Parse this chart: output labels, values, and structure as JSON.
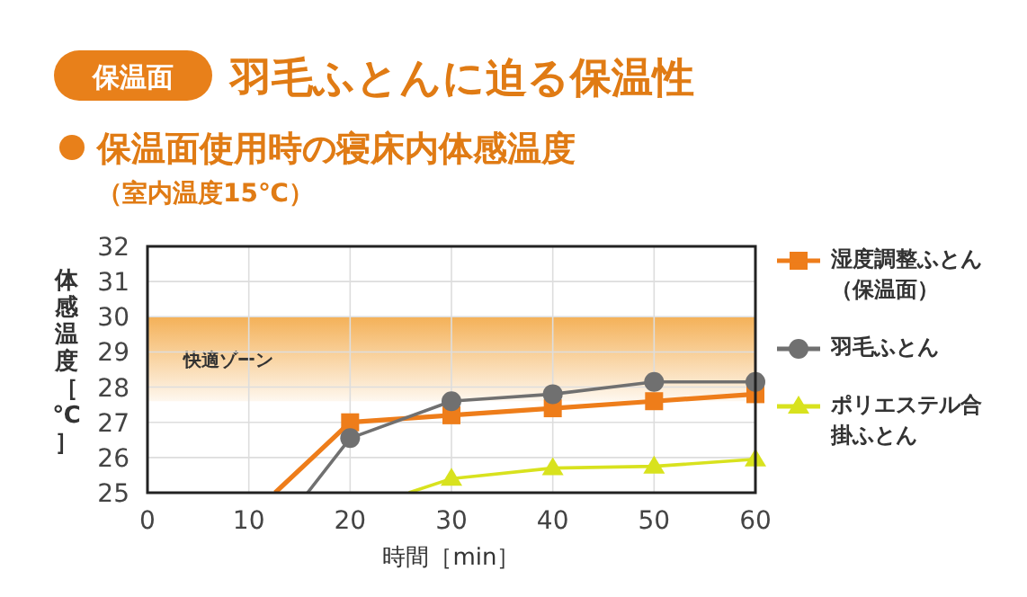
{
  "chart_data": {
    "type": "line",
    "title": "羽毛ふとんに迫る保温性",
    "subtitle": "保温面使用時の寝床内体感温度",
    "annotations": [
      "保温面",
      "（室内温度15℃）"
    ],
    "xlabel": "時間［min］",
    "ylabel": "体感温度［℃］",
    "xlim": [
      0,
      60
    ],
    "xticks": [
      0,
      10,
      20,
      30,
      40,
      50,
      60
    ],
    "ylim": [
      25,
      32
    ],
    "yticks": [
      25,
      26,
      27,
      28,
      29,
      30,
      31,
      32
    ],
    "grid": true,
    "legend": "right",
    "bands": [
      {
        "axis": "y",
        "from": 27.6,
        "to": 30,
        "label": "快適ゾーン",
        "color": "#f2a33a"
      }
    ],
    "series": [
      {
        "name": "湿度調整ふとん（保温面）",
        "color": "#ee7d1a",
        "marker": "square",
        "x": [
          12.6,
          20,
          30,
          40,
          50,
          60
        ],
        "values": [
          25,
          27,
          27.2,
          27.4,
          27.6,
          27.8
        ]
      },
      {
        "name": "羽毛ふとん",
        "color": "#707070",
        "marker": "circle",
        "x": [
          15.8,
          20,
          30,
          40,
          50,
          60
        ],
        "values": [
          25,
          26.55,
          27.6,
          27.8,
          28.15,
          28.15
        ]
      },
      {
        "name": "ポリエステル合掛ふとん",
        "color": "#d8e21e",
        "marker": "triangle",
        "x": [
          25.8,
          30,
          40,
          50,
          60
        ],
        "values": [
          25,
          25.4,
          25.7,
          25.75,
          25.95
        ]
      }
    ]
  }
}
